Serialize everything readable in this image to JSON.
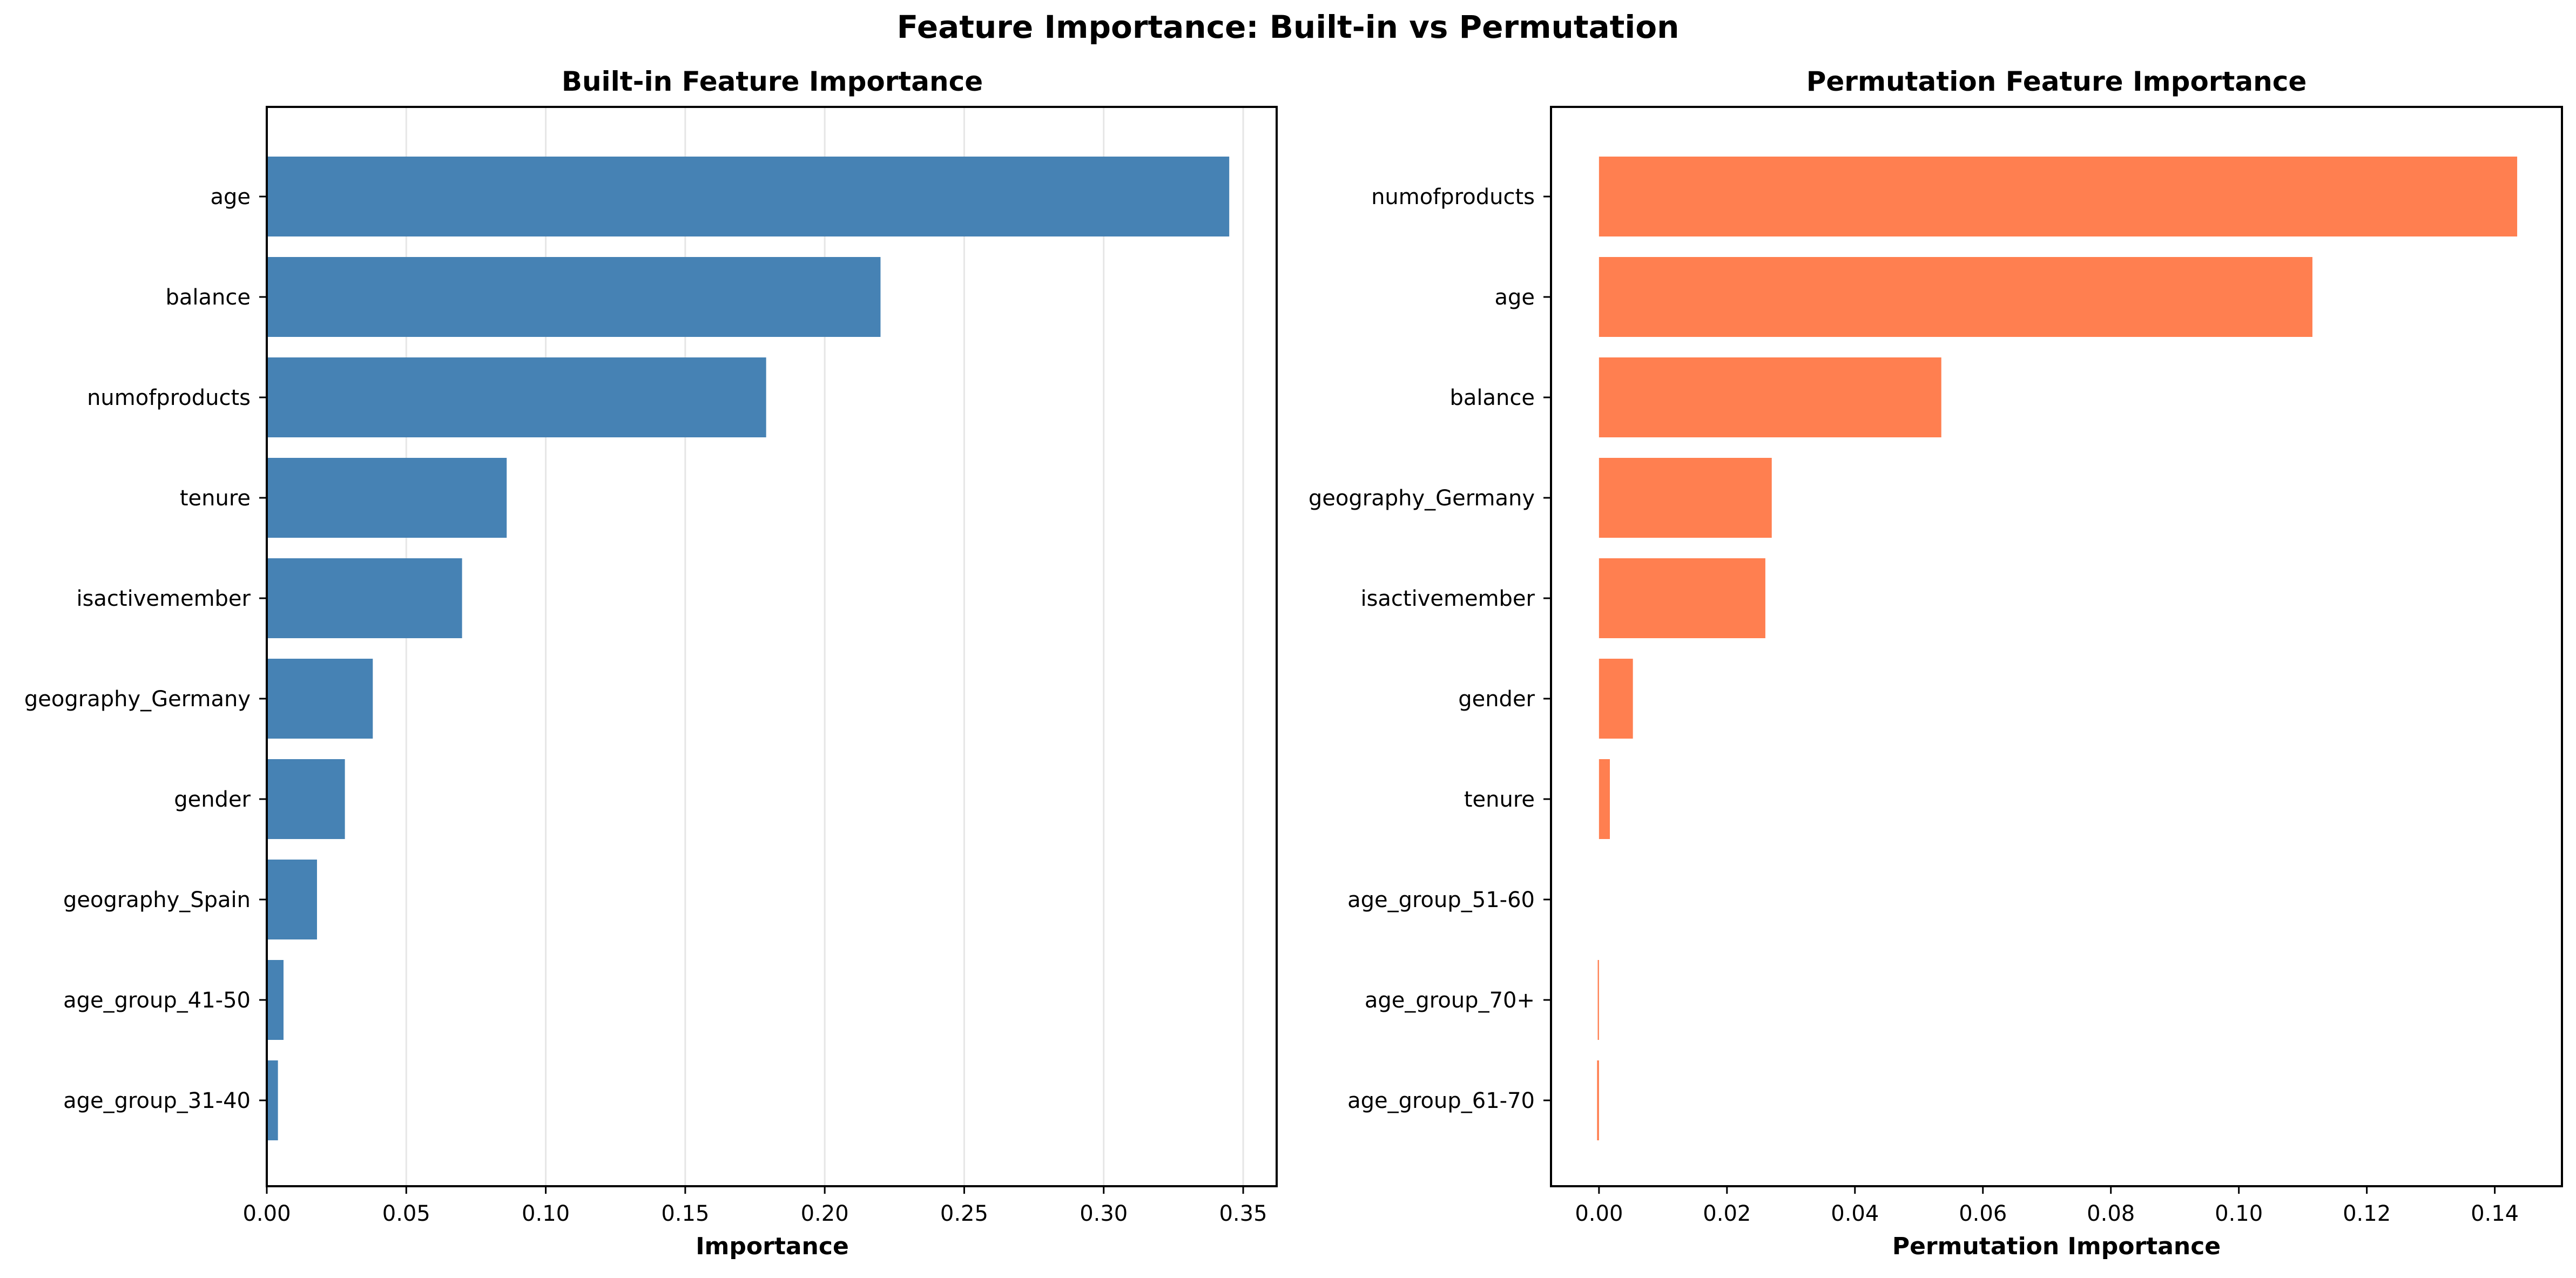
{
  "figure": {
    "suptitle": "Feature Importance: Built-in vs Permutation"
  },
  "colors": {
    "builtin_bar": "#4682b4",
    "permutation_bar": "#ff7f50",
    "grid": "#e6e6e6",
    "axes": "#000000"
  },
  "chart_data": [
    {
      "type": "bar",
      "orientation": "horizontal",
      "title": "Built-in Feature Importance",
      "xlabel": "Importance",
      "ylabel": "",
      "xlim": [
        0,
        0.362
      ],
      "xticks": [
        0.0,
        0.05,
        0.1,
        0.15,
        0.2,
        0.25,
        0.3,
        0.35
      ],
      "xtick_labels": [
        "0.00",
        "0.05",
        "0.10",
        "0.15",
        "0.20",
        "0.25",
        "0.30",
        "0.35"
      ],
      "grid": "x",
      "categories": [
        "age",
        "balance",
        "numofproducts",
        "tenure",
        "isactivemember",
        "geography_Germany",
        "gender",
        "geography_Spain",
        "age_group_41-50",
        "age_group_31-40"
      ],
      "values": [
        0.345,
        0.22,
        0.179,
        0.086,
        0.07,
        0.038,
        0.028,
        0.018,
        0.006,
        0.004
      ]
    },
    {
      "type": "bar",
      "orientation": "horizontal",
      "title": "Permutation Feature Importance",
      "xlabel": "Permutation Importance",
      "ylabel": "",
      "xlim": [
        -0.0075,
        0.1505
      ],
      "xticks": [
        0.0,
        0.02,
        0.04,
        0.06,
        0.08,
        0.1,
        0.12,
        0.14
      ],
      "xtick_labels": [
        "0.00",
        "0.02",
        "0.04",
        "0.06",
        "0.08",
        "0.10",
        "0.12",
        "0.14"
      ],
      "grid": "none",
      "categories": [
        "numofproducts",
        "age",
        "balance",
        "geography_Germany",
        "isactivemember",
        "gender",
        "tenure",
        "age_group_51-60",
        "age_group_70+",
        "age_group_61-70"
      ],
      "values": [
        0.1435,
        0.1115,
        0.0535,
        0.027,
        0.026,
        0.0053,
        0.0017,
        0.0,
        -0.0002,
        -0.0003
      ]
    }
  ]
}
